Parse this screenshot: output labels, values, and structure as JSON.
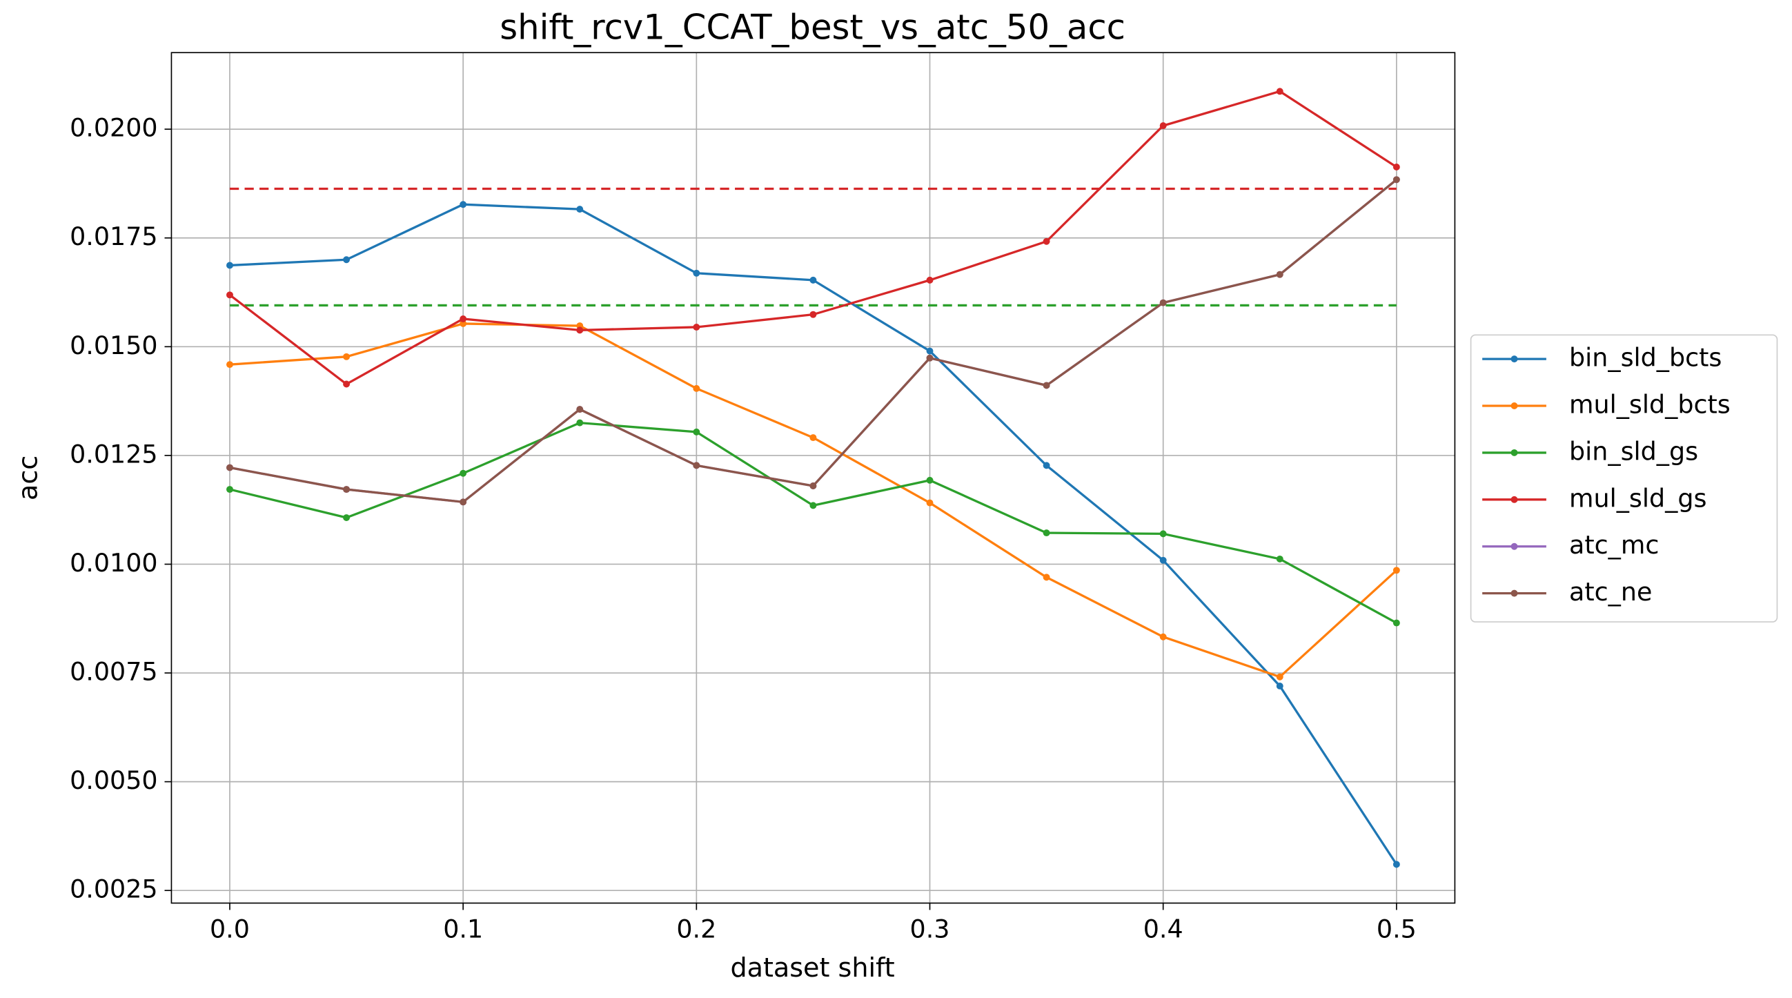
{
  "chart_data": {
    "type": "line",
    "title": "shift_rcv1_CCAT_best_vs_atc_50_acc",
    "xlabel": "dataset shift",
    "ylabel": "acc",
    "x": [
      0,
      0.05,
      0.1,
      0.15,
      0.2,
      0.25,
      0.3,
      0.35,
      0.4,
      0.45,
      0.5
    ],
    "series": [
      {
        "name": "bin_sld_bcts",
        "color": "#1f77b4",
        "values": [
          0.01687,
          0.017,
          0.01827,
          0.01816,
          0.01669,
          0.01653,
          0.0149,
          0.01227,
          0.01009,
          0.0072,
          0.0031
        ]
      },
      {
        "name": "mul_sld_bcts",
        "color": "#ff7f0e",
        "values": [
          0.01459,
          0.01477,
          0.01553,
          0.01548,
          0.01404,
          0.01291,
          0.01141,
          0.0097,
          0.00833,
          0.00741,
          0.00986
        ]
      },
      {
        "name": "bin_sld_gs",
        "color": "#2ca02c",
        "values": [
          0.01172,
          0.01107,
          0.01209,
          0.01325,
          0.01304,
          0.01135,
          0.01193,
          0.01072,
          0.0107,
          0.01012,
          0.00865
        ]
      },
      {
        "name": "mul_sld_gs",
        "color": "#d62728",
        "values": [
          0.01619,
          0.01414,
          0.01564,
          0.01538,
          0.01545,
          0.01574,
          0.01653,
          0.01742,
          0.02008,
          0.02087,
          0.01913
        ]
      },
      {
        "name": "atc_mc",
        "color": "#9467bd",
        "values": [
          0.01222,
          0.01172,
          0.01143,
          0.01356,
          0.01227,
          0.0118,
          0.01474,
          0.01411,
          0.01601,
          0.01666,
          0.01884
        ]
      },
      {
        "name": "atc_ne",
        "color": "#8c564b",
        "values": [
          0.01222,
          0.01172,
          0.01143,
          0.01356,
          0.01227,
          0.0118,
          0.01474,
          0.01411,
          0.01601,
          0.01666,
          0.01884
        ]
      }
    ],
    "reference_lines": [
      {
        "value": 0.01863,
        "color": "#d62728"
      },
      {
        "value": 0.01595,
        "color": "#2ca02c"
      }
    ],
    "xlim": [
      -0.025,
      0.525
    ],
    "xticks": [
      {
        "value": 0,
        "label": "0.0"
      },
      0.1,
      0.2,
      0.3,
      0.4,
      0.5
    ],
    "ylim": [
      0.00221,
      0.02176
    ],
    "yticks": [
      0.0025,
      {
        "value": 0.005,
        "label": "0.0050"
      },
      0.0075,
      {
        "value": 0.01,
        "label": "0.0100"
      },
      0.0125,
      {
        "value": 0.015,
        "label": "0.0150"
      },
      0.0175,
      {
        "value": 0.02,
        "label": "0.0200"
      }
    ],
    "grid": true,
    "legend": "right"
  }
}
